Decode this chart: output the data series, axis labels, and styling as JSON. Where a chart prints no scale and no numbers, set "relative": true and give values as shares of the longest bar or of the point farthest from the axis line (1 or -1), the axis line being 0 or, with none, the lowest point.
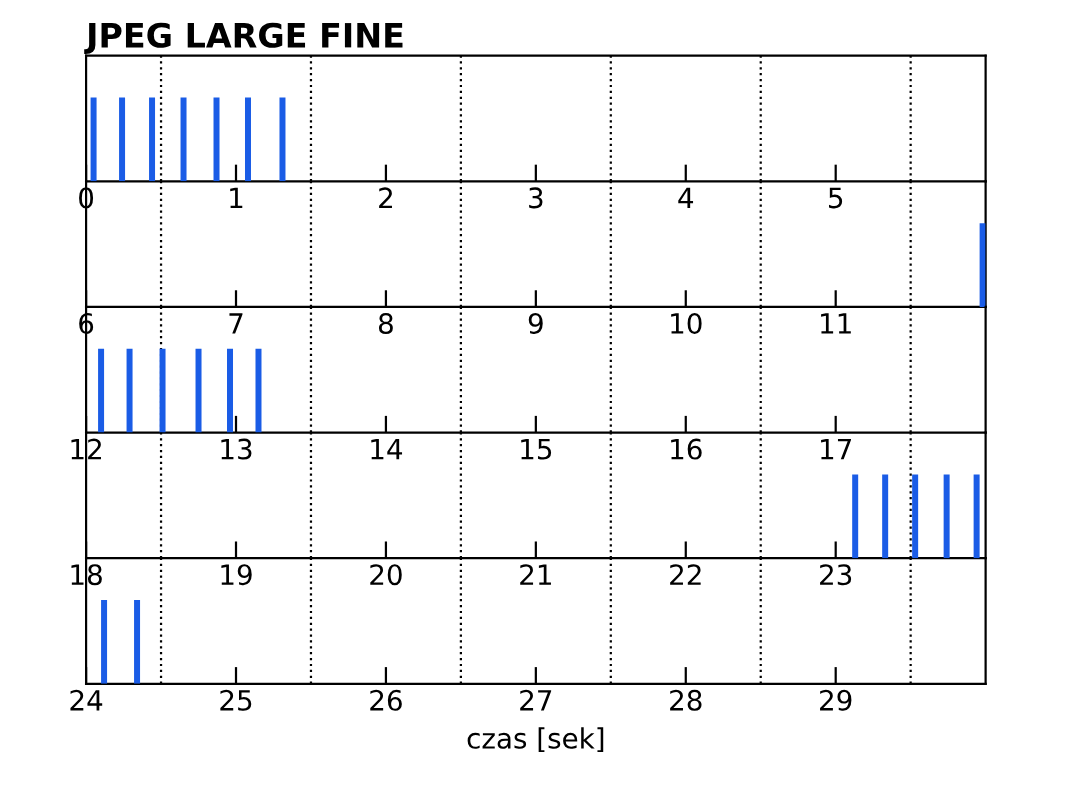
{
  "chart_data": [
    {
      "type": "bar",
      "title": "JPEG LARGE FINE",
      "relative": true,
      "xlim": [
        0,
        6
      ],
      "xticks": [
        0,
        1,
        2,
        3,
        4,
        5
      ],
      "x": [
        0.05,
        0.24,
        0.44,
        0.65,
        0.87,
        1.08,
        1.31
      ],
      "values": [
        1,
        1,
        1,
        1,
        1,
        1,
        1
      ],
      "color": "#1a5ce6",
      "ref_lines": [
        {
          "axis": "x",
          "value": 0.5,
          "line_style": "dotted",
          "color": "#000000"
        },
        {
          "axis": "x",
          "value": 1.5,
          "line_style": "dotted",
          "color": "#000000"
        },
        {
          "axis": "x",
          "value": 2.5,
          "line_style": "dotted",
          "color": "#000000"
        },
        {
          "axis": "x",
          "value": 3.5,
          "line_style": "dotted",
          "color": "#000000"
        },
        {
          "axis": "x",
          "value": 4.5,
          "line_style": "dotted",
          "color": "#000000"
        },
        {
          "axis": "x",
          "value": 5.5,
          "line_style": "dotted",
          "color": "#000000"
        }
      ]
    },
    {
      "type": "bar",
      "relative": true,
      "xlim": [
        6,
        12
      ],
      "xticks": [
        6,
        7,
        8,
        9,
        10,
        11
      ],
      "x": [
        11.98
      ],
      "values": [
        1
      ],
      "color": "#1a5ce6",
      "ref_lines": [
        {
          "axis": "x",
          "value": 6.5,
          "line_style": "dotted",
          "color": "#000000"
        },
        {
          "axis": "x",
          "value": 7.5,
          "line_style": "dotted",
          "color": "#000000"
        },
        {
          "axis": "x",
          "value": 8.5,
          "line_style": "dotted",
          "color": "#000000"
        },
        {
          "axis": "x",
          "value": 9.5,
          "line_style": "dotted",
          "color": "#000000"
        },
        {
          "axis": "x",
          "value": 10.5,
          "line_style": "dotted",
          "color": "#000000"
        },
        {
          "axis": "x",
          "value": 11.5,
          "line_style": "dotted",
          "color": "#000000"
        }
      ]
    },
    {
      "type": "bar",
      "relative": true,
      "xlim": [
        12,
        18
      ],
      "xticks": [
        12,
        13,
        14,
        15,
        16,
        17
      ],
      "x": [
        12.1,
        12.29,
        12.51,
        12.75,
        12.96,
        13.15
      ],
      "values": [
        1,
        1,
        1,
        1,
        1,
        1
      ],
      "color": "#1a5ce6",
      "ref_lines": [
        {
          "axis": "x",
          "value": 12.5,
          "line_style": "dotted",
          "color": "#000000"
        },
        {
          "axis": "x",
          "value": 13.5,
          "line_style": "dotted",
          "color": "#000000"
        },
        {
          "axis": "x",
          "value": 14.5,
          "line_style": "dotted",
          "color": "#000000"
        },
        {
          "axis": "x",
          "value": 15.5,
          "line_style": "dotted",
          "color": "#000000"
        },
        {
          "axis": "x",
          "value": 16.5,
          "line_style": "dotted",
          "color": "#000000"
        },
        {
          "axis": "x",
          "value": 17.5,
          "line_style": "dotted",
          "color": "#000000"
        }
      ]
    },
    {
      "type": "bar",
      "relative": true,
      "xlim": [
        18,
        24
      ],
      "xticks": [
        18,
        19,
        20,
        21,
        22,
        23
      ],
      "x": [
        23.13,
        23.33,
        23.53,
        23.74,
        23.94
      ],
      "values": [
        1,
        1,
        1,
        1,
        1
      ],
      "color": "#1a5ce6",
      "ref_lines": [
        {
          "axis": "x",
          "value": 18.5,
          "line_style": "dotted",
          "color": "#000000"
        },
        {
          "axis": "x",
          "value": 19.5,
          "line_style": "dotted",
          "color": "#000000"
        },
        {
          "axis": "x",
          "value": 20.5,
          "line_style": "dotted",
          "color": "#000000"
        },
        {
          "axis": "x",
          "value": 21.5,
          "line_style": "dotted",
          "color": "#000000"
        },
        {
          "axis": "x",
          "value": 22.5,
          "line_style": "dotted",
          "color": "#000000"
        },
        {
          "axis": "x",
          "value": 23.5,
          "line_style": "dotted",
          "color": "#000000"
        }
      ]
    },
    {
      "type": "bar",
      "relative": true,
      "xlabel": "czas [sek]",
      "xlim": [
        24,
        30
      ],
      "xticks": [
        24,
        25,
        26,
        27,
        28,
        29
      ],
      "x": [
        24.12,
        24.34
      ],
      "values": [
        1,
        1
      ],
      "color": "#1a5ce6",
      "ref_lines": [
        {
          "axis": "x",
          "value": 24.5,
          "line_style": "dotted",
          "color": "#000000"
        },
        {
          "axis": "x",
          "value": 25.5,
          "line_style": "dotted",
          "color": "#000000"
        },
        {
          "axis": "x",
          "value": 26.5,
          "line_style": "dotted",
          "color": "#000000"
        },
        {
          "axis": "x",
          "value": 27.5,
          "line_style": "dotted",
          "color": "#000000"
        },
        {
          "axis": "x",
          "value": 28.5,
          "line_style": "dotted",
          "color": "#000000"
        },
        {
          "axis": "x",
          "value": 29.5,
          "line_style": "dotted",
          "color": "#000000"
        }
      ]
    }
  ]
}
